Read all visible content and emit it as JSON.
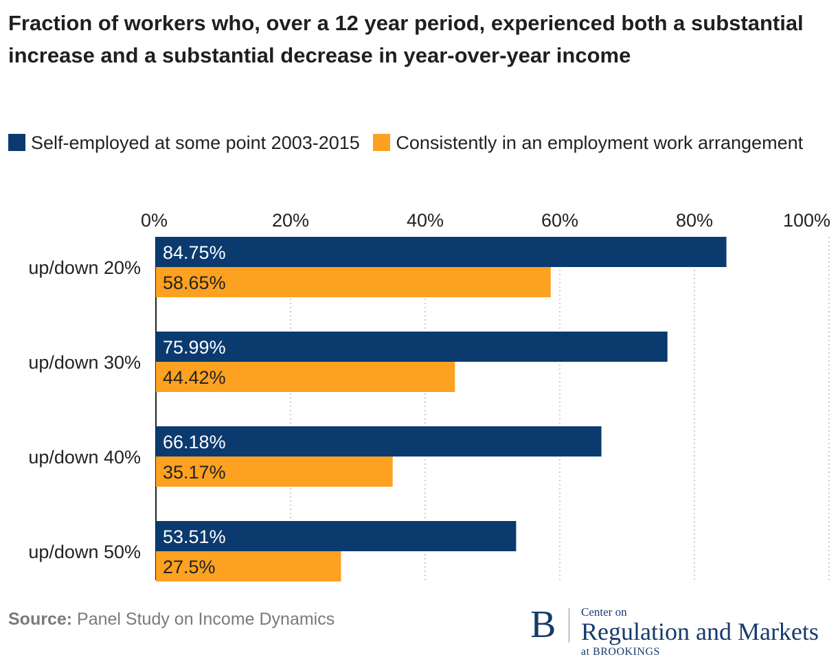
{
  "title": "Fraction of workers who, over a 12 year period, experienced both a substantial increase and a substantial decrease in year-over-year income",
  "legend": [
    {
      "label": "Self-employed at some point 2003-2015",
      "color": "#0b3a6f"
    },
    {
      "label": "Consistently in an employment work arrangement",
      "color": "#fca120"
    }
  ],
  "source": {
    "label": "Source:",
    "text": "Panel Study on Income Dynamics"
  },
  "logo": {
    "letter": "B",
    "line1": "Center on",
    "line2": "Regulation and Markets",
    "line3": "at BROOKINGS"
  },
  "chart_data": {
    "type": "bar",
    "orientation": "horizontal",
    "title": "Fraction of workers who, over a 12 year period, experienced both a substantial increase and a substantial decrease in year-over-year income",
    "categories": [
      "up/down 20%",
      "up/down 30%",
      "up/down 40%",
      "up/down 50%"
    ],
    "series": [
      {
        "name": "Self-employed at some point 2003-2015",
        "values": [
          84.75,
          75.99,
          66.18,
          53.51
        ],
        "labels": [
          "84.75%",
          "75.99%",
          "66.18%",
          "53.51%"
        ],
        "color": "#0b3a6f",
        "label_color": "#ffffff"
      },
      {
        "name": "Consistently in an employment work arrangement",
        "values": [
          58.65,
          44.42,
          35.17,
          27.5
        ],
        "labels": [
          "58.65%",
          "44.42%",
          "35.17%",
          "27.5%"
        ],
        "color": "#fca120",
        "label_color": "#222222"
      }
    ],
    "xlim": [
      0,
      100
    ],
    "xticks": [
      0,
      20,
      40,
      60,
      80,
      100
    ],
    "xtick_labels": [
      "0%",
      "20%",
      "40%",
      "60%",
      "80%",
      "100%"
    ],
    "axis_position": "top",
    "grid": true,
    "legend_position": "top-left"
  }
}
